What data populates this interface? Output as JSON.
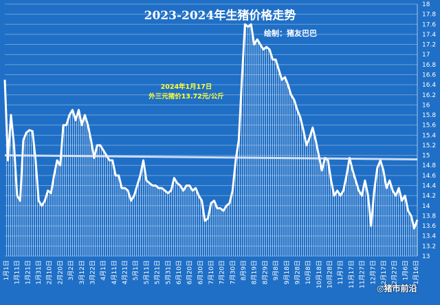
{
  "chart_data": {
    "type": "area",
    "title": "2023-2024年生猪价格走势",
    "credit": "绘制：猪友巴巴",
    "annotation": [
      "2024年1月17日",
      "外三元猪价13.72元/公斤"
    ],
    "y_ticks": [
      "18",
      "17.8",
      "17.6",
      "17.4",
      "17.2",
      "17",
      "16.8",
      "16.6",
      "16.4",
      "16.2",
      "16",
      "15.8",
      "15.6",
      "15.4",
      "15.2",
      "15",
      "14.8",
      "14.6",
      "14.4",
      "14.2",
      "14",
      "13.8",
      "13.6",
      "13.4",
      "13.2",
      "13"
    ],
    "ylim": [
      13,
      18
    ],
    "x_tick_labels": [
      "1月1日",
      "1月11日",
      "1月21日",
      "1月31日",
      "2月10日",
      "2月20日",
      "3月2日",
      "3月12日",
      "3月22日",
      "4月1日",
      "4月11日",
      "4月21日",
      "5月1日",
      "5月11日",
      "5月21日",
      "5月31日",
      "6月10日",
      "6月20日",
      "6月30日",
      "7月10日",
      "7月20日",
      "7月30日",
      "8月9日",
      "8月19日",
      "8月29日",
      "9月8日",
      "9月18日",
      "9月28日",
      "10月8日",
      "10月18日",
      "10月28日",
      "11月7日",
      "11月17日",
      "11月27日",
      "12月7日",
      "12月17日",
      "12月27日",
      "1月6日",
      "1月16日"
    ],
    "series": [
      {
        "values": [
          16.5,
          14.9,
          15.8,
          15.2,
          14.2,
          14.1,
          15.3,
          15.45,
          15.5,
          15.48,
          14.9,
          14.1,
          14.0,
          14.1,
          14.3,
          14.25,
          14.6,
          14.9,
          14.8,
          15.6,
          15.6,
          15.8,
          15.9,
          15.7,
          15.9,
          15.6,
          15.8,
          15.6,
          15.3,
          14.95,
          15.2,
          15.2,
          15.1,
          15.0,
          14.9,
          14.9,
          14.6,
          14.6,
          14.35,
          14.35,
          14.3,
          14.1,
          14.2,
          14.4,
          14.6,
          14.9,
          14.5,
          14.45,
          14.4,
          14.4,
          14.35,
          14.35,
          14.3,
          14.25,
          14.3,
          14.55,
          14.45,
          14.4,
          14.3,
          14.4,
          14.4,
          14.3,
          14.35,
          14.2,
          14.1,
          13.7,
          13.75,
          14.05,
          14.1,
          13.95,
          13.95,
          13.9,
          14.0,
          14.05,
          14.3,
          14.9,
          15.3,
          16.5,
          17.6,
          17.55,
          17.6,
          17.2,
          17.3,
          17.2,
          17.1,
          17.15,
          17.1,
          16.9,
          16.9,
          16.7,
          16.5,
          16.55,
          16.4,
          16.2,
          16.1,
          15.9,
          15.75,
          15.5,
          15.2,
          15.35,
          15.55,
          15.3,
          15.0,
          14.7,
          14.95,
          14.9,
          14.5,
          14.2,
          14.3,
          14.2,
          14.3,
          14.6,
          14.95,
          14.7,
          14.5,
          14.3,
          14.2,
          14.5,
          14.2,
          13.6,
          14.3,
          14.75,
          14.9,
          14.7,
          14.35,
          14.5,
          14.3,
          14.2,
          14.35,
          14.1,
          14.2,
          13.9,
          13.8,
          13.55,
          13.72
        ]
      },
      {
        "values": [
          15.0,
          14.92
        ]
      }
    ]
  },
  "watermark": "猪市前沿"
}
